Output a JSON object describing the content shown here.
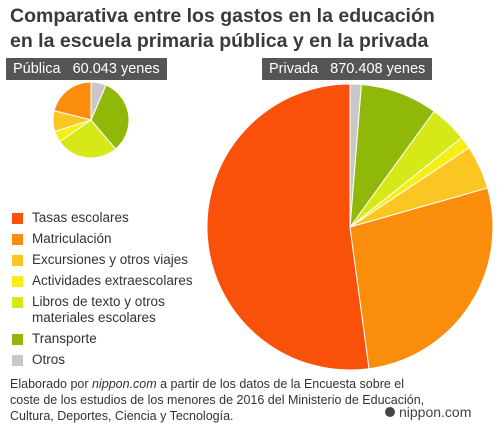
{
  "title_line1": "Comparativa entre los gastos en la educación",
  "title_line2": "en la escuela primaria pública y en la privada",
  "footer": {
    "prefix": "Elaborado por ",
    "site": "nippon.com",
    "suffix": " a partir de los datos de la Encuesta sobre el coste de los estudios de los menores de 2016 del Ministerio de Educación, Cultura, Deportes, Ciencia y Tecnología."
  },
  "brand": "nippon.com",
  "chart_data": {
    "type": "pie",
    "categories": [
      "Tasas escolares",
      "Matriculación",
      "Excursiones y otros viajes",
      "Actividades extraescolares",
      "Libros de texto y otros\nmateriales escolares",
      "Transporte",
      "Otros"
    ],
    "colors": [
      "#f95109",
      "#fb8d0c",
      "#fbc522",
      "#f5ef15",
      "#d6e818",
      "#8fb808",
      "#c8c8c8"
    ],
    "legend_position": "left",
    "charts": [
      {
        "name": "Pública",
        "total_label": "60.043 yenes",
        "values": [
          0,
          6.2,
          2.6,
          1.4,
          7.8,
          9.5,
          1.9
        ],
        "icon_name": "small-pie"
      },
      {
        "name": "Privada",
        "total_label": "870.408 yenes",
        "values": [
          453,
          237,
          43,
          12,
          37,
          76,
          11
        ],
        "icon_name": "large-pie"
      }
    ]
  }
}
